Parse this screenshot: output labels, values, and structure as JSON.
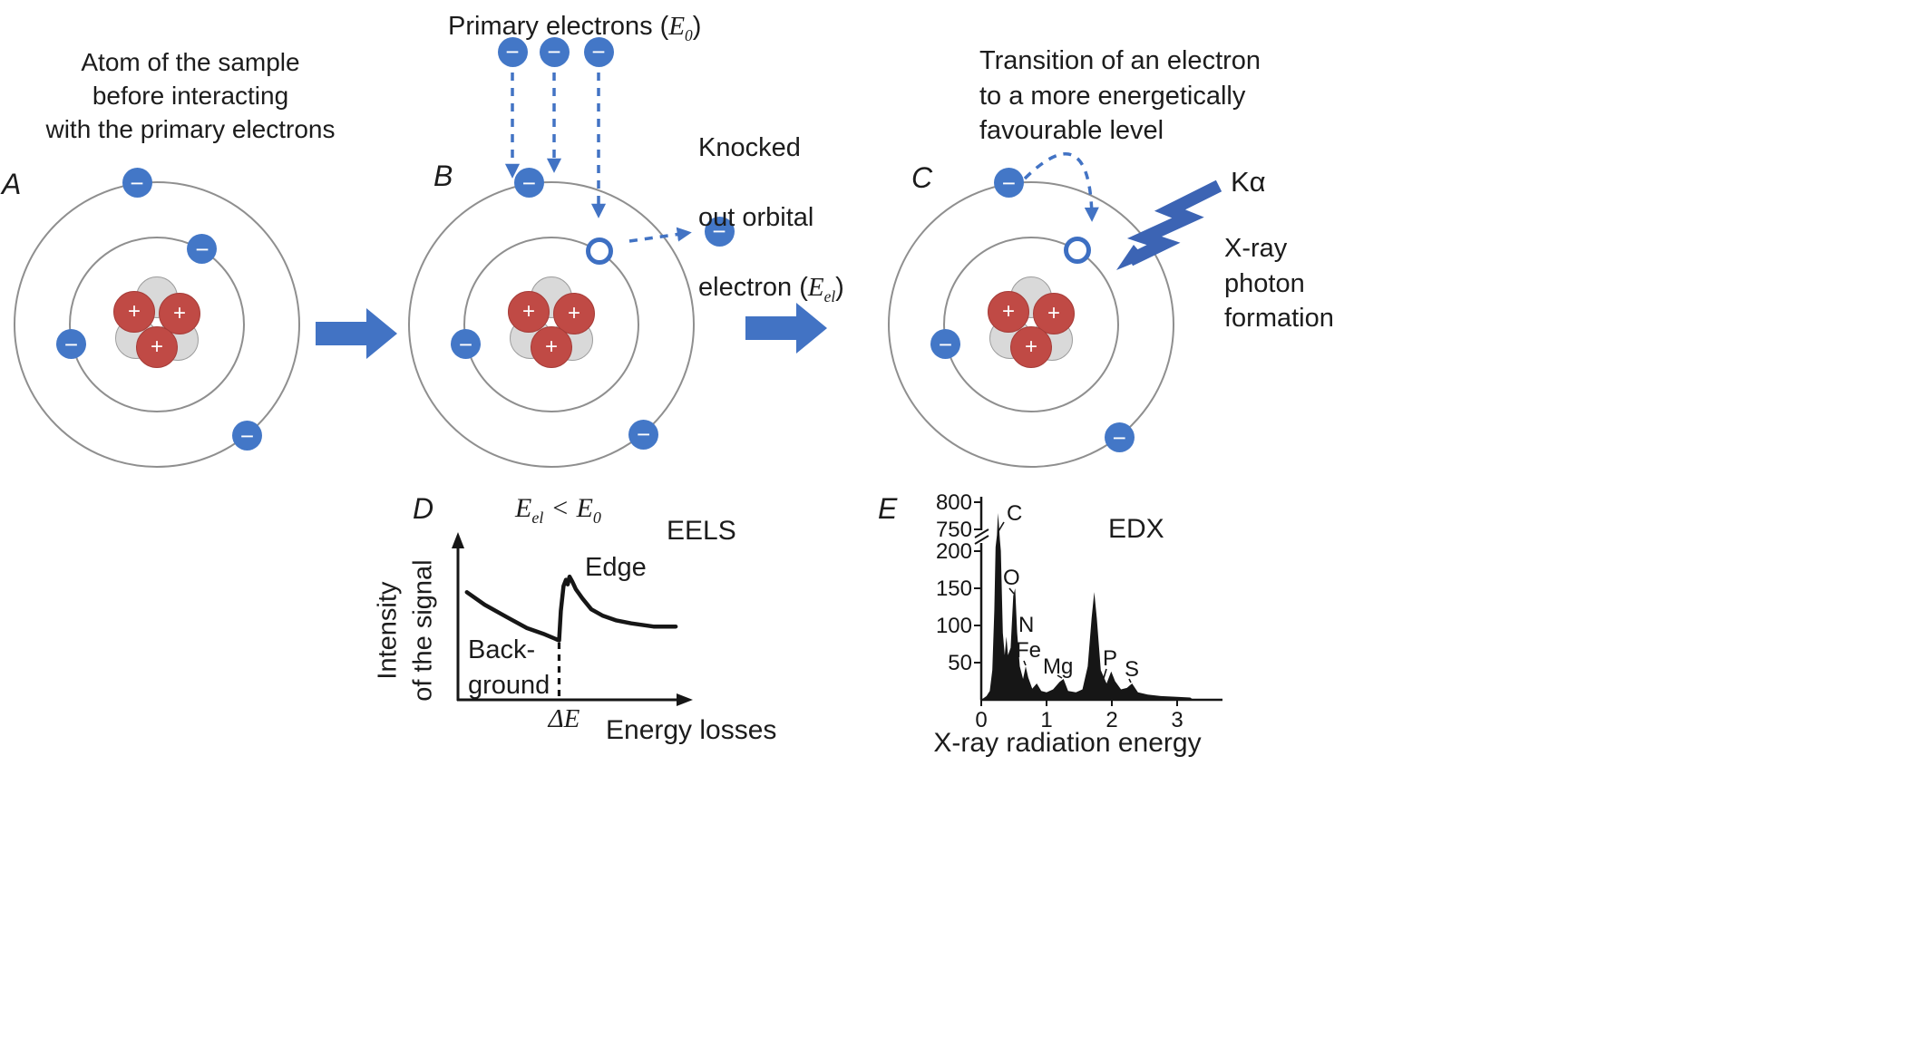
{
  "symbols": {
    "minus": "−",
    "plus": "+"
  },
  "panel_a": {
    "label": "A",
    "caption": "Atom of the sample\nbefore interacting\nwith the primary electrons"
  },
  "panel_b": {
    "label": "B",
    "primary_label": {
      "prefix": "Primary electrons (",
      "sym": "E",
      "sub": "0",
      "suffix": ")"
    },
    "knocked_label": {
      "line1": "Knocked",
      "line2": "out orbital",
      "line3_prefix": "electron (",
      "sym": "E",
      "sub": "el",
      "suffix": ")"
    }
  },
  "panel_c": {
    "label": "C",
    "caption": "Transition of an electron\nto a more energetically\nfavourable level",
    "kalpha": "Kα",
    "xray_label": "X-ray\nphoton\nformation"
  },
  "panel_d": {
    "label": "D",
    "technique": "EELS",
    "relation": {
      "sym1": "E",
      "sub1": "el",
      "op": "<",
      "sym2": "E",
      "sub2": "0"
    },
    "edge_label": "Edge",
    "background_label": "Back-\nground",
    "delta_e": "ΔE",
    "xlabel": "Energy losses",
    "ylabel": "Intensity\nof the signal"
  },
  "panel_e": {
    "label": "E",
    "technique": "EDX",
    "xlabel": "X-ray radiation energy"
  },
  "chart_data": [
    {
      "name": "EELS",
      "type": "line",
      "title": "EELS",
      "xlabel": "Energy losses",
      "ylabel": "Intensity of the signal",
      "annotations": [
        "Edge",
        "Back-ground",
        "ΔE"
      ],
      "x_axis": "arbitrary units, arrow axis, no ticks",
      "y_axis": "arbitrary units, arrow axis, no ticks",
      "edge_onset_percent": 45.5,
      "curve_percent": [
        [
          4,
          69
        ],
        [
          12,
          61
        ],
        [
          22,
          53
        ],
        [
          31,
          46
        ],
        [
          39,
          42
        ],
        [
          44,
          39
        ],
        [
          45.5,
          38
        ],
        [
          46.3,
          57
        ],
        [
          47.5,
          73
        ],
        [
          48.6,
          77
        ],
        [
          49.4,
          74
        ],
        [
          50.2,
          79
        ],
        [
          51.4,
          76
        ],
        [
          53,
          71
        ],
        [
          56,
          65
        ],
        [
          60,
          58
        ],
        [
          65,
          54
        ],
        [
          71,
          51
        ],
        [
          78,
          49
        ],
        [
          88,
          47
        ],
        [
          98,
          47
        ]
      ]
    },
    {
      "name": "EDX",
      "type": "area",
      "title": "EDX",
      "xlabel": "X-ray radiation energy",
      "yticks": [
        50,
        100,
        150,
        200,
        750,
        800
      ],
      "xticks": [
        0,
        1,
        2,
        3
      ],
      "axis_break": true,
      "peaks": [
        {
          "label": "C",
          "keV": 0.25,
          "counts": 780
        },
        {
          "label": "N",
          "keV": 0.39,
          "counts": 85
        },
        {
          "label": "O",
          "keV": 0.52,
          "counts": 150
        },
        {
          "label": "Fe",
          "keV": 0.68,
          "counts": 45
        },
        {
          "label": "Mg",
          "keV": 1.26,
          "counts": 28
        },
        {
          "label": "P",
          "keV": 1.99,
          "counts": 38
        },
        {
          "label": "S",
          "keV": 2.31,
          "counts": 22
        }
      ],
      "profile": [
        [
          0,
          0
        ],
        [
          0.08,
          5
        ],
        [
          0.13,
          12
        ],
        [
          0.17,
          40
        ],
        [
          0.2,
          120
        ],
        [
          0.22,
          300
        ],
        [
          0.24,
          600
        ],
        [
          0.255,
          780
        ],
        [
          0.27,
          760
        ],
        [
          0.285,
          500
        ],
        [
          0.3,
          210
        ],
        [
          0.33,
          90
        ],
        [
          0.36,
          60
        ],
        [
          0.385,
          85
        ],
        [
          0.41,
          60
        ],
        [
          0.45,
          70
        ],
        [
          0.49,
          140
        ],
        [
          0.52,
          150
        ],
        [
          0.55,
          90
        ],
        [
          0.59,
          45
        ],
        [
          0.64,
          28
        ],
        [
          0.68,
          45
        ],
        [
          0.72,
          30
        ],
        [
          0.78,
          15
        ],
        [
          0.85,
          22
        ],
        [
          0.92,
          12
        ],
        [
          1.0,
          10
        ],
        [
          1.1,
          14
        ],
        [
          1.2,
          24
        ],
        [
          1.26,
          28
        ],
        [
          1.33,
          12
        ],
        [
          1.45,
          10
        ],
        [
          1.55,
          14
        ],
        [
          1.63,
          45
        ],
        [
          1.69,
          110
        ],
        [
          1.73,
          145
        ],
        [
          1.77,
          110
        ],
        [
          1.83,
          40
        ],
        [
          1.92,
          22
        ],
        [
          1.99,
          38
        ],
        [
          2.05,
          25
        ],
        [
          2.14,
          14
        ],
        [
          2.23,
          16
        ],
        [
          2.31,
          22
        ],
        [
          2.4,
          10
        ],
        [
          2.55,
          7
        ],
        [
          2.75,
          5
        ],
        [
          3.0,
          4
        ],
        [
          3.2,
          3
        ]
      ]
    }
  ]
}
